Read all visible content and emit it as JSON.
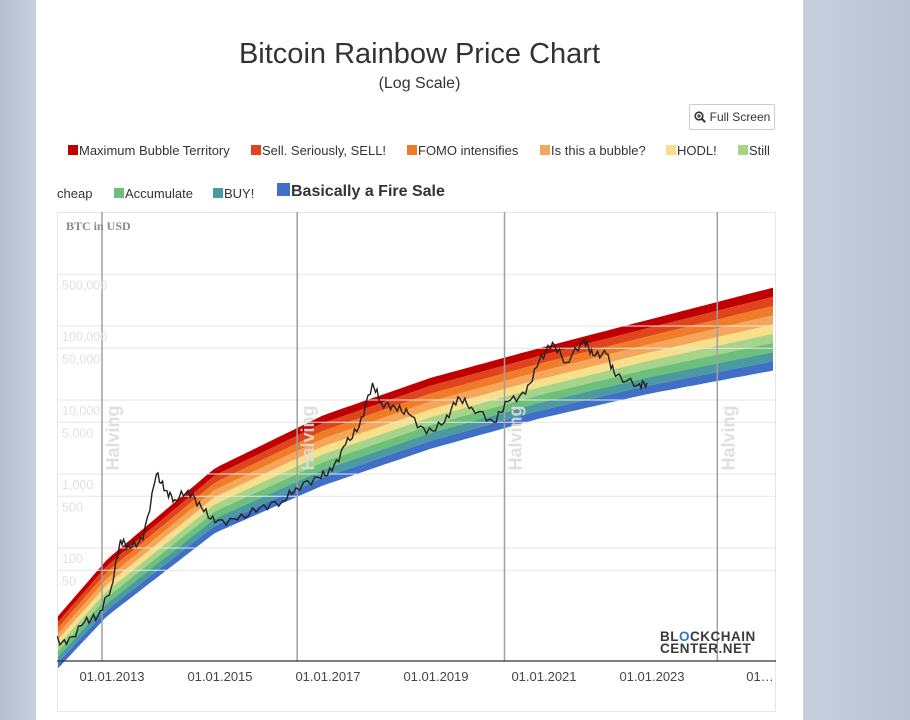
{
  "header": {
    "title": "Bitcoin Rainbow Price Chart",
    "subtitle": "(Log Scale)",
    "fullscreen_label": "Full Screen",
    "fullscreen_icon": "magnifier-plus-icon"
  },
  "legend": [
    {
      "label": "Maximum Bubble Territory",
      "color": "#c00000"
    },
    {
      "label": "Sell. Seriously, SELL!",
      "color": "#e0441c"
    },
    {
      "label": "FOMO intensifies",
      "color": "#f07c28"
    },
    {
      "label": "Is this a bubble?",
      "color": "#f5a65a"
    },
    {
      "label": "HODL!",
      "color": "#f8e08a"
    },
    {
      "label": "Still",
      "label_cont": "cheap",
      "color": "#a8d48a"
    },
    {
      "label": "Accumulate",
      "color": "#6cc07c"
    },
    {
      "label": "BUY!",
      "color": "#4a9aa0"
    },
    {
      "label": "Basically a Fire Sale",
      "color": "#3f6fc6"
    }
  ],
  "watermark": {
    "line1": "BL",
    "line1_mark": "O",
    "line1_rest": "CKCHAIN",
    "line2": "CENTER.NET"
  },
  "chart_data": {
    "type": "area",
    "scale": "log",
    "ylabel": "BTC in USD",
    "yticks": [
      {
        "value": 500000,
        "label": "500,000"
      },
      {
        "value": 100000,
        "label": "100,000"
      },
      {
        "value": 50000,
        "label": "50,000"
      },
      {
        "value": 10000,
        "label": "10,000"
      },
      {
        "value": 5000,
        "label": "5,000"
      },
      {
        "value": 1000,
        "label": "1,000"
      },
      {
        "value": 500,
        "label": "500"
      },
      {
        "value": 100,
        "label": "100"
      },
      {
        "value": 50,
        "label": "50"
      }
    ],
    "xticks": [
      "01.01.2013",
      "01.01.2015",
      "01.01.2017",
      "01.01.2019",
      "01.01.2021",
      "01.01.2023",
      "01…"
    ],
    "xrange": [
      "2011-12",
      "2025-05"
    ],
    "yrange": [
      1,
      1000000
    ],
    "halvings": [
      {
        "label": "Halving",
        "date": "2012-11-28"
      },
      {
        "label": "Halving",
        "date": "2016-07-09"
      },
      {
        "label": "Halving",
        "date": "2020-05-11"
      },
      {
        "label": "Halving",
        "date": "2024-04-20"
      }
    ],
    "bands_note": "9 rainbow bands following log regression, ordered top to bottom as legend",
    "band_bottom_line": [
      {
        "date": "2012-01",
        "value": 2
      },
      {
        "date": "2013-01",
        "value": 12
      },
      {
        "date": "2015-01",
        "value": 160
      },
      {
        "date": "2017-01",
        "value": 700
      },
      {
        "date": "2019-01",
        "value": 2200
      },
      {
        "date": "2021-01",
        "value": 5600
      },
      {
        "date": "2023-01",
        "value": 12000
      },
      {
        "date": "2025-05",
        "value": 25000
      }
    ],
    "band_top_line": [
      {
        "date": "2012-01",
        "value": 10
      },
      {
        "date": "2013-01",
        "value": 70
      },
      {
        "date": "2015-01",
        "value": 1200
      },
      {
        "date": "2017-01",
        "value": 6200
      },
      {
        "date": "2019-01",
        "value": 20000
      },
      {
        "date": "2021-01",
        "value": 50000
      },
      {
        "date": "2023-01",
        "value": 120000
      },
      {
        "date": "2025-05",
        "value": 330000
      }
    ],
    "series": [
      {
        "name": "BTC price",
        "points": [
          {
            "date": "2012-01",
            "value": 6
          },
          {
            "date": "2012-04",
            "value": 5
          },
          {
            "date": "2012-08",
            "value": 10
          },
          {
            "date": "2012-11",
            "value": 12
          },
          {
            "date": "2013-02",
            "value": 30
          },
          {
            "date": "2013-04",
            "value": 130
          },
          {
            "date": "2013-06",
            "value": 100
          },
          {
            "date": "2013-09",
            "value": 130
          },
          {
            "date": "2013-12",
            "value": 1000
          },
          {
            "date": "2014-02",
            "value": 600
          },
          {
            "date": "2014-04",
            "value": 450
          },
          {
            "date": "2014-07",
            "value": 600
          },
          {
            "date": "2014-10",
            "value": 350
          },
          {
            "date": "2015-01",
            "value": 220
          },
          {
            "date": "2015-06",
            "value": 240
          },
          {
            "date": "2015-11",
            "value": 350
          },
          {
            "date": "2016-04",
            "value": 430
          },
          {
            "date": "2016-07",
            "value": 650
          },
          {
            "date": "2016-12",
            "value": 900
          },
          {
            "date": "2017-03",
            "value": 1100
          },
          {
            "date": "2017-06",
            "value": 2500
          },
          {
            "date": "2017-09",
            "value": 4300
          },
          {
            "date": "2017-12",
            "value": 17000
          },
          {
            "date": "2018-02",
            "value": 9000
          },
          {
            "date": "2018-05",
            "value": 8000
          },
          {
            "date": "2018-08",
            "value": 6500
          },
          {
            "date": "2018-12",
            "value": 3500
          },
          {
            "date": "2019-04",
            "value": 5000
          },
          {
            "date": "2019-07",
            "value": 11000
          },
          {
            "date": "2019-10",
            "value": 8000
          },
          {
            "date": "2020-03",
            "value": 5000
          },
          {
            "date": "2020-06",
            "value": 9500
          },
          {
            "date": "2020-10",
            "value": 12000
          },
          {
            "date": "2021-01",
            "value": 33000
          },
          {
            "date": "2021-04",
            "value": 60000
          },
          {
            "date": "2021-07",
            "value": 32000
          },
          {
            "date": "2021-11",
            "value": 65000
          },
          {
            "date": "2022-01",
            "value": 40000
          },
          {
            "date": "2022-04",
            "value": 42000
          },
          {
            "date": "2022-06",
            "value": 21000
          },
          {
            "date": "2022-11",
            "value": 16000
          },
          {
            "date": "2023-01",
            "value": 17000
          }
        ]
      }
    ]
  }
}
